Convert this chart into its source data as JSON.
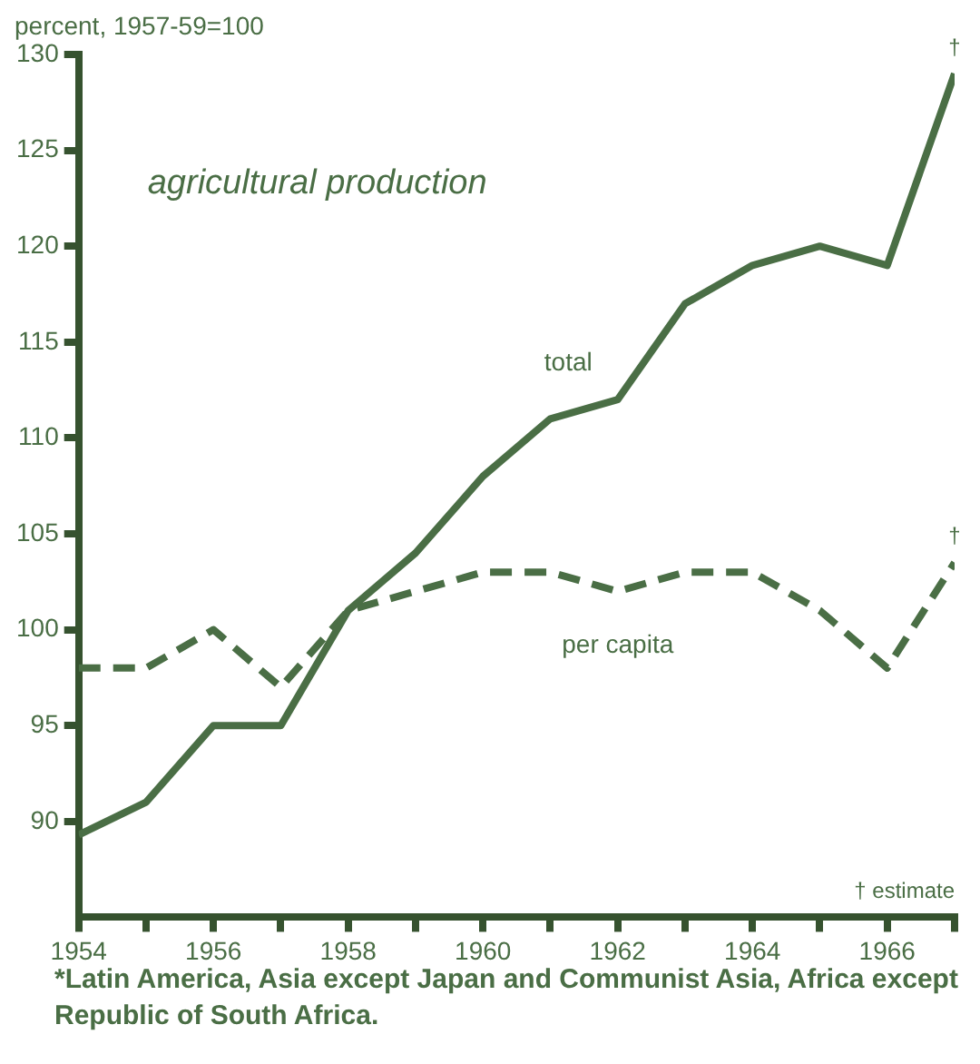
{
  "chart_data": {
    "type": "line",
    "title": "agricultural production",
    "ylabel": "percent, 1957-59=100",
    "x": [
      1954,
      1955,
      1956,
      1957,
      1958,
      1959,
      1960,
      1961,
      1962,
      1963,
      1964,
      1965,
      1966,
      1967
    ],
    "series": [
      {
        "name": "total",
        "color": "#4a6e45",
        "line_style": "solid",
        "values": [
          89.3,
          91,
          95,
          95,
          101,
          104,
          108,
          111,
          112,
          117,
          119,
          120,
          119,
          129
        ]
      },
      {
        "name": "per capita",
        "color": "#4a6e45",
        "line_style": "dashed",
        "values": [
          98,
          98,
          100,
          97,
          101,
          102,
          103,
          103,
          102,
          103,
          103,
          101,
          98,
          103.5
        ]
      }
    ],
    "xlim": [
      1954,
      1967
    ],
    "xticks": [
      1954,
      {
        "value": 1955,
        "label": null
      },
      1956,
      {
        "value": 1957,
        "label": null
      },
      1958,
      {
        "value": 1959,
        "label": null
      },
      1960,
      {
        "value": 1961,
        "label": null
      },
      1962,
      {
        "value": 1963,
        "label": null
      },
      1964,
      {
        "value": 1965,
        "label": null
      },
      1966,
      {
        "value": 1967,
        "label": null
      }
    ],
    "ylim": [
      85,
      130
    ],
    "yticks": [
      90,
      95,
      100,
      105,
      110,
      115,
      120,
      125,
      130
    ],
    "grid": false,
    "legend": false,
    "marker": "none",
    "annotations": [
      {
        "text": "†",
        "x": 1967,
        "y": 129
      },
      {
        "text": "†",
        "x": 1967,
        "y": 103.5
      },
      "† estimate",
      "*Latin America, Asia except Japan and Communist Asia, Africa except Republic of South Africa."
    ]
  }
}
